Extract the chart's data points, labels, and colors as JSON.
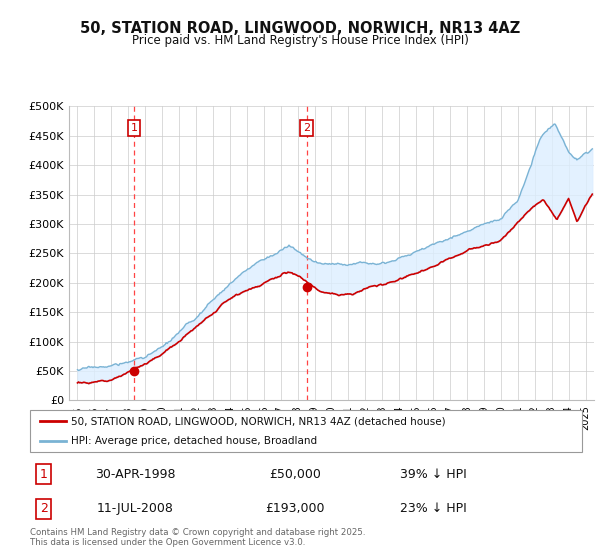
{
  "title": "50, STATION ROAD, LINGWOOD, NORWICH, NR13 4AZ",
  "subtitle": "Price paid vs. HM Land Registry's House Price Index (HPI)",
  "ylim": [
    0,
    500000
  ],
  "yticks": [
    0,
    50000,
    100000,
    150000,
    200000,
    250000,
    300000,
    350000,
    400000,
    450000,
    500000
  ],
  "ytick_labels": [
    "£0",
    "£50K",
    "£100K",
    "£150K",
    "£200K",
    "£250K",
    "£300K",
    "£350K",
    "£400K",
    "£450K",
    "£500K"
  ],
  "xlim_start": 1994.5,
  "xlim_end": 2025.5,
  "hpi_color": "#7ab3d4",
  "hpi_fill_color": "#ddeeff",
  "price_color": "#cc0000",
  "marker_color": "#cc0000",
  "vline_color": "#ff4444",
  "transaction1_x": 1998.33,
  "transaction1_y": 50000,
  "transaction1_label": "1",
  "transaction1_date": "30-APR-1998",
  "transaction1_price": "£50,000",
  "transaction1_hpi": "39% ↓ HPI",
  "transaction2_x": 2008.54,
  "transaction2_y": 193000,
  "transaction2_label": "2",
  "transaction2_date": "11-JUL-2008",
  "transaction2_price": "£193,000",
  "transaction2_hpi": "23% ↓ HPI",
  "legend_line1": "50, STATION ROAD, LINGWOOD, NORWICH, NR13 4AZ (detached house)",
  "legend_line2": "HPI: Average price, detached house, Broadland",
  "footnote": "Contains HM Land Registry data © Crown copyright and database right 2025.\nThis data is licensed under the Open Government Licence v3.0.",
  "background_color": "#ffffff",
  "grid_color": "#cccccc"
}
